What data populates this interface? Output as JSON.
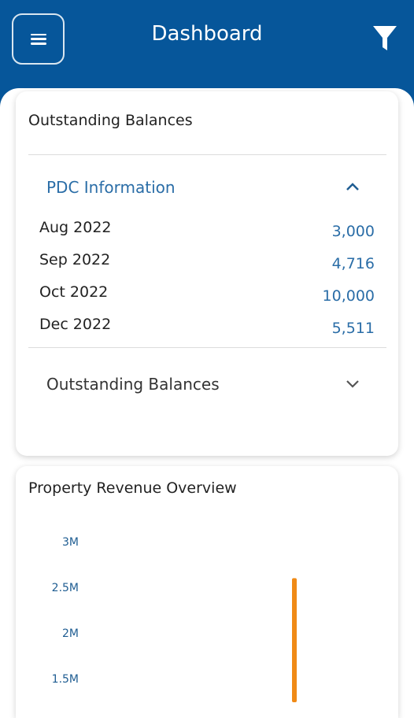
{
  "header": {
    "title": "Dashboard",
    "background": "#06569a",
    "menu_icon": "hamburger-menu-icon",
    "filter_icon": "filter-funnel-icon"
  },
  "outstanding_card": {
    "title": "Outstanding Balances",
    "pdc_section": {
      "label": "PDC Information",
      "expanded": true,
      "rows": [
        {
          "month": "Aug 2022",
          "value": "3,000"
        },
        {
          "month": "Sep 2022",
          "value": "4,716"
        },
        {
          "month": "Oct 2022",
          "value": "10,000"
        },
        {
          "month": "Dec 2022",
          "value": "5,511"
        }
      ]
    },
    "balances_section": {
      "label": "Outstanding Balances",
      "expanded": false
    }
  },
  "revenue_card": {
    "title": "Property Revenue Overview"
  },
  "chart_data": {
    "type": "bar",
    "title": "Property Revenue Overview",
    "y_ticks": [
      "3M",
      "2.5M",
      "2M",
      "1.5M"
    ],
    "ylim_visible": [
      1500000,
      3000000
    ],
    "series": [
      {
        "values": [
          2600000
        ],
        "color": "#f08a16"
      }
    ]
  },
  "colors": {
    "accent": "#2a6da7",
    "bar": "#f08a16"
  }
}
